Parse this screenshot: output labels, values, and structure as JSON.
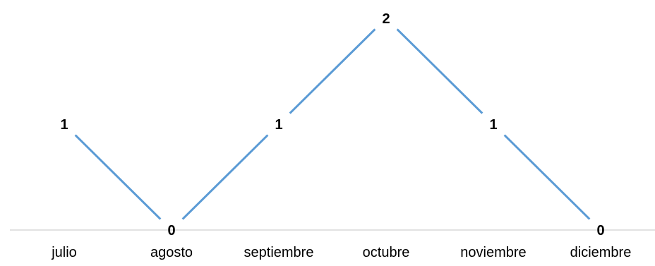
{
  "chart_data": {
    "type": "line",
    "categories": [
      "julio",
      "agosto",
      "septiembre",
      "octubre",
      "noviembre",
      "diciembre"
    ],
    "series": [
      {
        "values": [
          1,
          0,
          1,
          2,
          1,
          0
        ]
      }
    ],
    "title": "",
    "xlabel": "",
    "ylabel": "",
    "ylim": [
      0,
      2
    ],
    "grid": false,
    "legend": "none",
    "data_labels": true,
    "colors": {
      "line": "#5b9bd5",
      "axis": "#d9d9d9",
      "text": "#000000"
    }
  }
}
